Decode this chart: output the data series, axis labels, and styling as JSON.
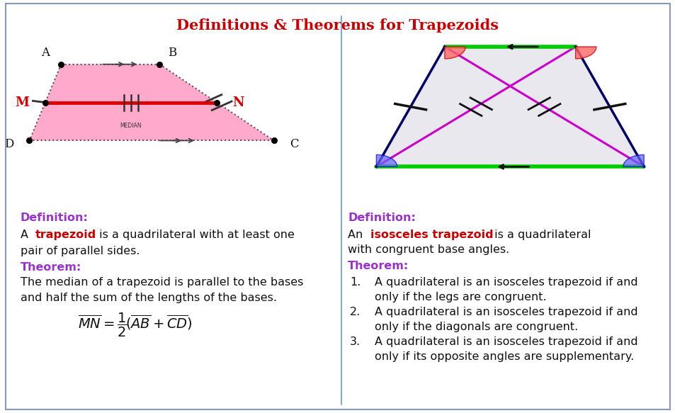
{
  "title": "Definitions & Theorems for Trapezoids",
  "title_color": "#cc0000",
  "background_color": "#ffffff",
  "border_color": "#8899bb",
  "divider_color": "#6699cc",
  "left_trap": {
    "A": [
      0.15,
      0.82
    ],
    "B": [
      0.46,
      0.82
    ],
    "C": [
      0.82,
      0.38
    ],
    "D": [
      0.05,
      0.38
    ],
    "fill_color": "#ffaacc",
    "edge_color": "#888888",
    "median_color": "#dd0000"
  },
  "right_trap": {
    "TL": [
      0.28,
      0.92
    ],
    "TR": [
      0.72,
      0.92
    ],
    "BR": [
      0.95,
      0.22
    ],
    "BL": [
      0.05,
      0.22
    ],
    "top_base_color": "#00cc00",
    "bot_base_color": "#00cc00",
    "leg_color": "#000066",
    "diag_color": "#cc00cc",
    "fill_color": "#e8e8ee"
  },
  "purple_color": "#9933cc",
  "orange_color": "#ff8800",
  "red_color": "#cc0000",
  "text_color": "#111111"
}
